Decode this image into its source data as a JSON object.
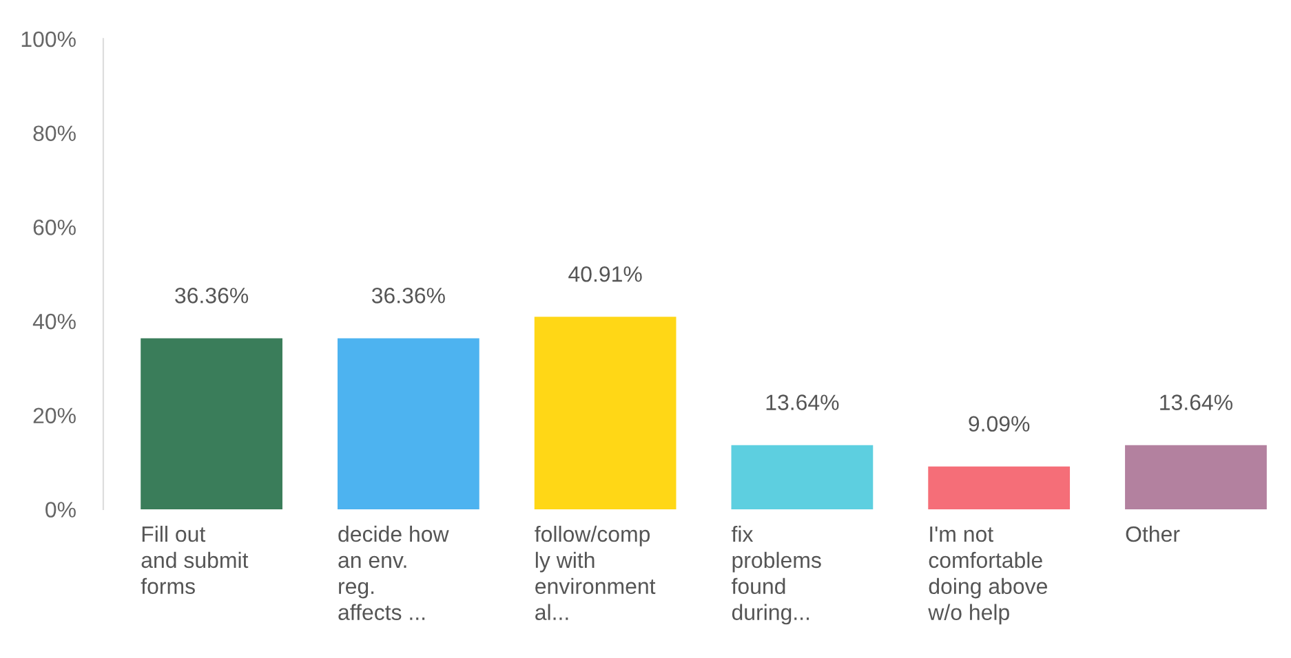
{
  "chart_data": {
    "type": "bar",
    "categories": [
      "Fill out\nand submit\nforms",
      "decide how\nan env.\nreg.\naffects ...",
      "follow/comp\nly with\nenvironment\nal...",
      "fix\nproblems\nfound\nduring...",
      "I'm not\ncomfortable\ndoing above\nw/o help",
      "Other"
    ],
    "values": [
      36.36,
      36.36,
      40.91,
      13.64,
      9.09,
      13.64
    ],
    "colors": [
      "#3a7d5a",
      "#4db3f0",
      "#ffd716",
      "#5dcfe0",
      "#f56e78",
      "#b3819f"
    ],
    "value_labels": [
      "36.36%",
      "36.36%",
      "40.91%",
      "13.64%",
      "9.09%",
      "13.64%"
    ],
    "ylim": [
      0,
      100
    ],
    "yticks": [
      {
        "value": 0,
        "label": "0%"
      },
      {
        "value": 20,
        "label": "20%"
      },
      {
        "value": 40,
        "label": "40%"
      },
      {
        "value": 60,
        "label": "60%"
      },
      {
        "value": 80,
        "label": "80%"
      },
      {
        "value": 100,
        "label": "100%"
      }
    ],
    "grid": false,
    "legend": false
  }
}
